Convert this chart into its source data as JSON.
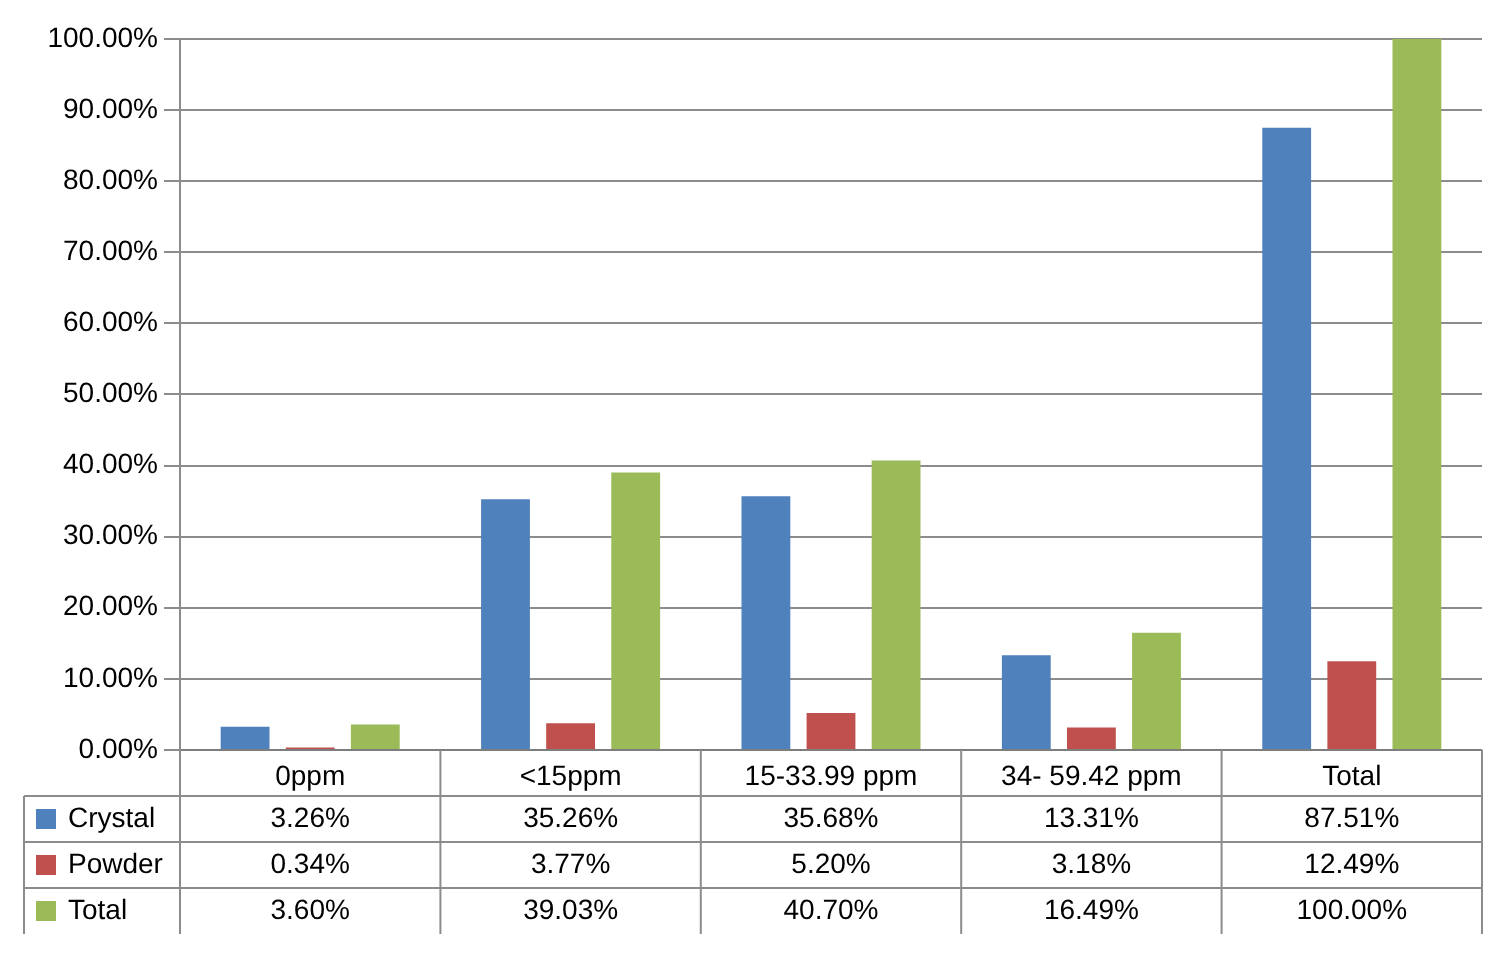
{
  "chart_data": {
    "type": "bar",
    "categories": [
      "0ppm",
      "<15ppm",
      "15-33.99 ppm",
      "34- 59.42 ppm",
      "Total"
    ],
    "series": [
      {
        "name": "Crystal",
        "color": "#4f81bd",
        "values": [
          3.26,
          35.26,
          35.68,
          13.31,
          87.51
        ],
        "value_labels": [
          "3.26%",
          "35.26%",
          "35.68%",
          "13.31%",
          "87.51%"
        ]
      },
      {
        "name": "Powder",
        "color": "#c0504d",
        "values": [
          0.34,
          3.77,
          5.2,
          3.18,
          12.49
        ],
        "value_labels": [
          "0.34%",
          "3.77%",
          "5.20%",
          "3.18%",
          "12.49%"
        ]
      },
      {
        "name": "Total",
        "color": "#9bbb59",
        "values": [
          3.6,
          39.03,
          40.7,
          16.49,
          100
        ],
        "value_labels": [
          "3.60%",
          "39.03%",
          "40.70%",
          "16.49%",
          "100.00%"
        ]
      }
    ],
    "ylim": [
      0,
      100
    ],
    "yticks": [
      {
        "value": 0,
        "label": "0.00%"
      },
      {
        "value": 10,
        "label": "10.00%"
      },
      {
        "value": 20,
        "label": "20.00%"
      },
      {
        "value": 30,
        "label": "30.00%"
      },
      {
        "value": 40,
        "label": "40.00%"
      },
      {
        "value": 50,
        "label": "50.00%"
      },
      {
        "value": 60,
        "label": "60.00%"
      },
      {
        "value": 70,
        "label": "70.00%"
      },
      {
        "value": 80,
        "label": "80.00%"
      },
      {
        "value": 90,
        "label": "90.00%"
      },
      {
        "value": 100,
        "label": "100.00%"
      }
    ],
    "grid": "y",
    "legend": "bottom left"
  }
}
